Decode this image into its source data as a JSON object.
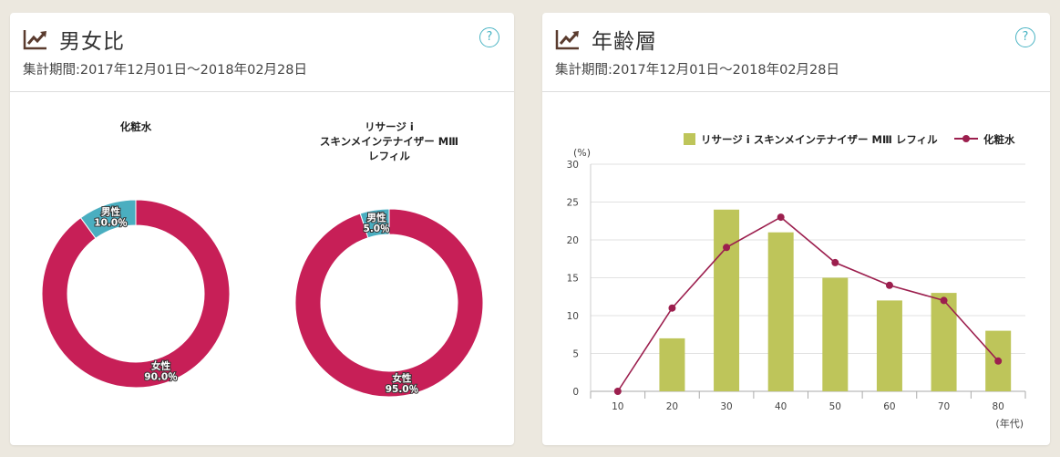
{
  "gender": {
    "title": "男女比",
    "period": "集計期間:2017年12月01日～2018年02月28日",
    "help": "?",
    "colors": {
      "female": "#c71f57",
      "male": "#4aaec0"
    },
    "chart_data": [
      {
        "type": "pie",
        "title": "化粧水",
        "slices": [
          {
            "label": "男性",
            "pct_label": "10.0％",
            "value": 10.0
          },
          {
            "label": "女性",
            "pct_label": "90.0％",
            "value": 90.0
          }
        ]
      },
      {
        "type": "pie",
        "title": [
          "リサージ i",
          "スキンメインテナイザー MⅢ",
          "レフィル"
        ],
        "slices": [
          {
            "label": "男性",
            "pct_label": "5.0％",
            "value": 5.0
          },
          {
            "label": "女性",
            "pct_label": "95.0％",
            "value": 95.0
          }
        ]
      }
    ]
  },
  "age": {
    "title": "年齢層",
    "period": "集計期間:2017年12月01日～2018年02月28日",
    "help": "?",
    "colors": {
      "bar": "#bec55a",
      "line": "#9c1f4e"
    },
    "chart_data": {
      "type": "bar",
      "categories": [
        "10",
        "20",
        "30",
        "40",
        "50",
        "60",
        "70",
        "80"
      ],
      "series": [
        {
          "name": "リサージ i スキンメインテナイザー MⅢ レフィル",
          "type": "bar",
          "values": [
            0,
            7,
            24,
            21,
            15,
            12,
            13,
            8
          ]
        },
        {
          "name": "化粧水",
          "type": "line",
          "values": [
            0,
            11,
            19,
            23,
            17,
            14,
            12,
            4
          ]
        }
      ],
      "ylabel": "(%)",
      "xlabel": "(年代)",
      "ylim": [
        0,
        30
      ],
      "yticks": [
        "0",
        "5",
        "10",
        "15",
        "20",
        "25",
        "30"
      ],
      "legend": "top-right"
    }
  }
}
